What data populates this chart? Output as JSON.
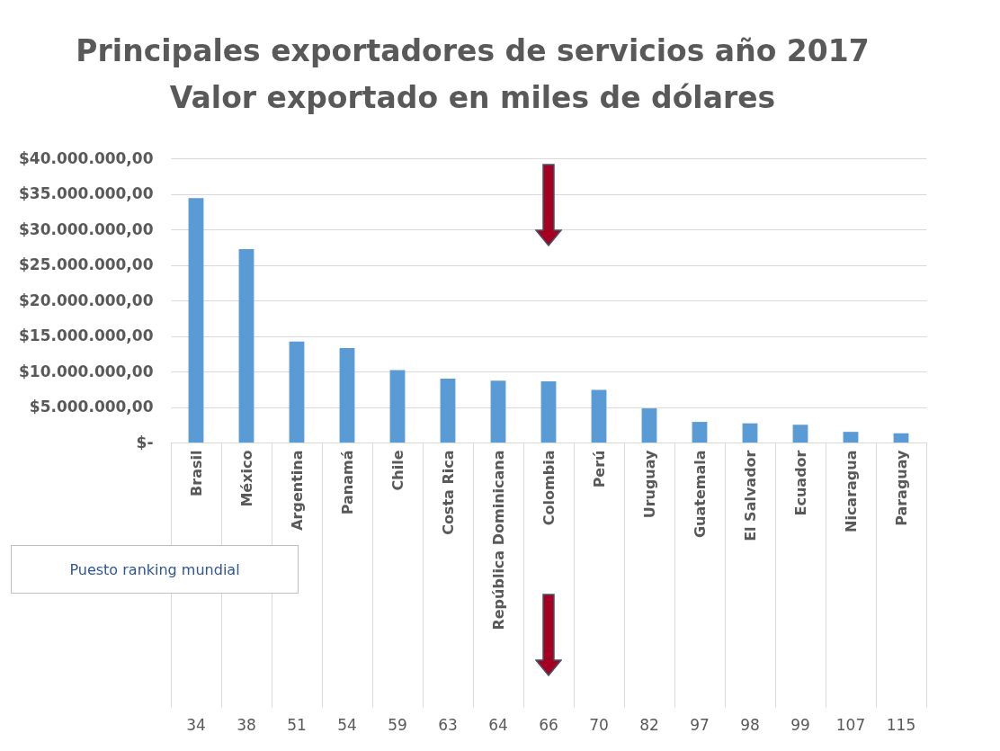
{
  "chart_data": {
    "type": "bar",
    "title": [
      "Principales exportadores de servicios  año 2017",
      "Valor exportado en miles de dólares"
    ],
    "categories": [
      "Brasil",
      "México",
      "Argentina",
      "Panamá",
      "Chile",
      "Costa Rica",
      "República Dominicana",
      "Colombia",
      "Perú",
      "Uruguay",
      "Guatemala",
      "El Salvador",
      "Ecuador",
      "Nicaragua",
      "Paraguay"
    ],
    "values": [
      34400000,
      27200000,
      14200000,
      13300000,
      10200000,
      9000000,
      8700000,
      8600000,
      7400000,
      4800000,
      2900000,
      2700000,
      2500000,
      1500000,
      1300000
    ],
    "color": "#5b9bd5",
    "ylim": [
      0,
      40000000
    ],
    "yticks": [
      {
        "value": 0,
        "label": "$-"
      },
      {
        "value": 5000000,
        "label": "$5.000.000,00"
      },
      {
        "value": 10000000,
        "label": "$10.000.000,00"
      },
      {
        "value": 15000000,
        "label": "$15.000.000,00"
      },
      {
        "value": 20000000,
        "label": "$20.000.000,00"
      },
      {
        "value": 25000000,
        "label": "$25.000.000,00"
      },
      {
        "value": 30000000,
        "label": "$30.000.000,00"
      },
      {
        "value": 35000000,
        "label": "$35.000.000,00"
      },
      {
        "value": 40000000,
        "label": "$40.000.000,00"
      }
    ],
    "grid": "y",
    "annotations": [
      "Puesto ranking mundial",
      "34",
      "38",
      "51",
      "54",
      "59",
      "63",
      "64",
      "66",
      "70",
      "82",
      "97",
      "98",
      "99",
      "107",
      "115"
    ]
  }
}
